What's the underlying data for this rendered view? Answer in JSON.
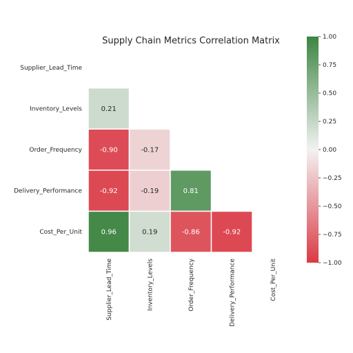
{
  "chart_data": {
    "type": "heatmap",
    "title": "Supply Chain Metrics Correlation Matrix",
    "rows": [
      "Supplier_Lead_Time",
      "Inventory_Levels",
      "Order_Frequency",
      "Delivery_Performance",
      "Cost_Per_Unit"
    ],
    "columns": [
      "Supplier_Lead_Time",
      "Inventory_Levels",
      "Order_Frequency",
      "Delivery_Performance",
      "Cost_Per_Unit"
    ],
    "values": [
      [
        null,
        null,
        null,
        null,
        null
      ],
      [
        0.21,
        null,
        null,
        null,
        null
      ],
      [
        -0.9,
        -0.17,
        null,
        null,
        null
      ],
      [
        -0.92,
        -0.19,
        0.81,
        null,
        null
      ],
      [
        0.96,
        0.19,
        -0.86,
        -0.92,
        null
      ]
    ],
    "mask": "upper triangle including diagonal",
    "annotations_format": "0.00",
    "colorbar": {
      "vmin": -1.0,
      "vmax": 1.0,
      "ticks": [
        "1.00",
        "0.75",
        "0.50",
        "0.25",
        "0.00",
        "−0.25",
        "−0.50",
        "−0.75",
        "−1.00"
      ],
      "colors": {
        "negative": "#db3a45",
        "center": "#f2f2f2",
        "positive": "#3d8541"
      }
    }
  }
}
